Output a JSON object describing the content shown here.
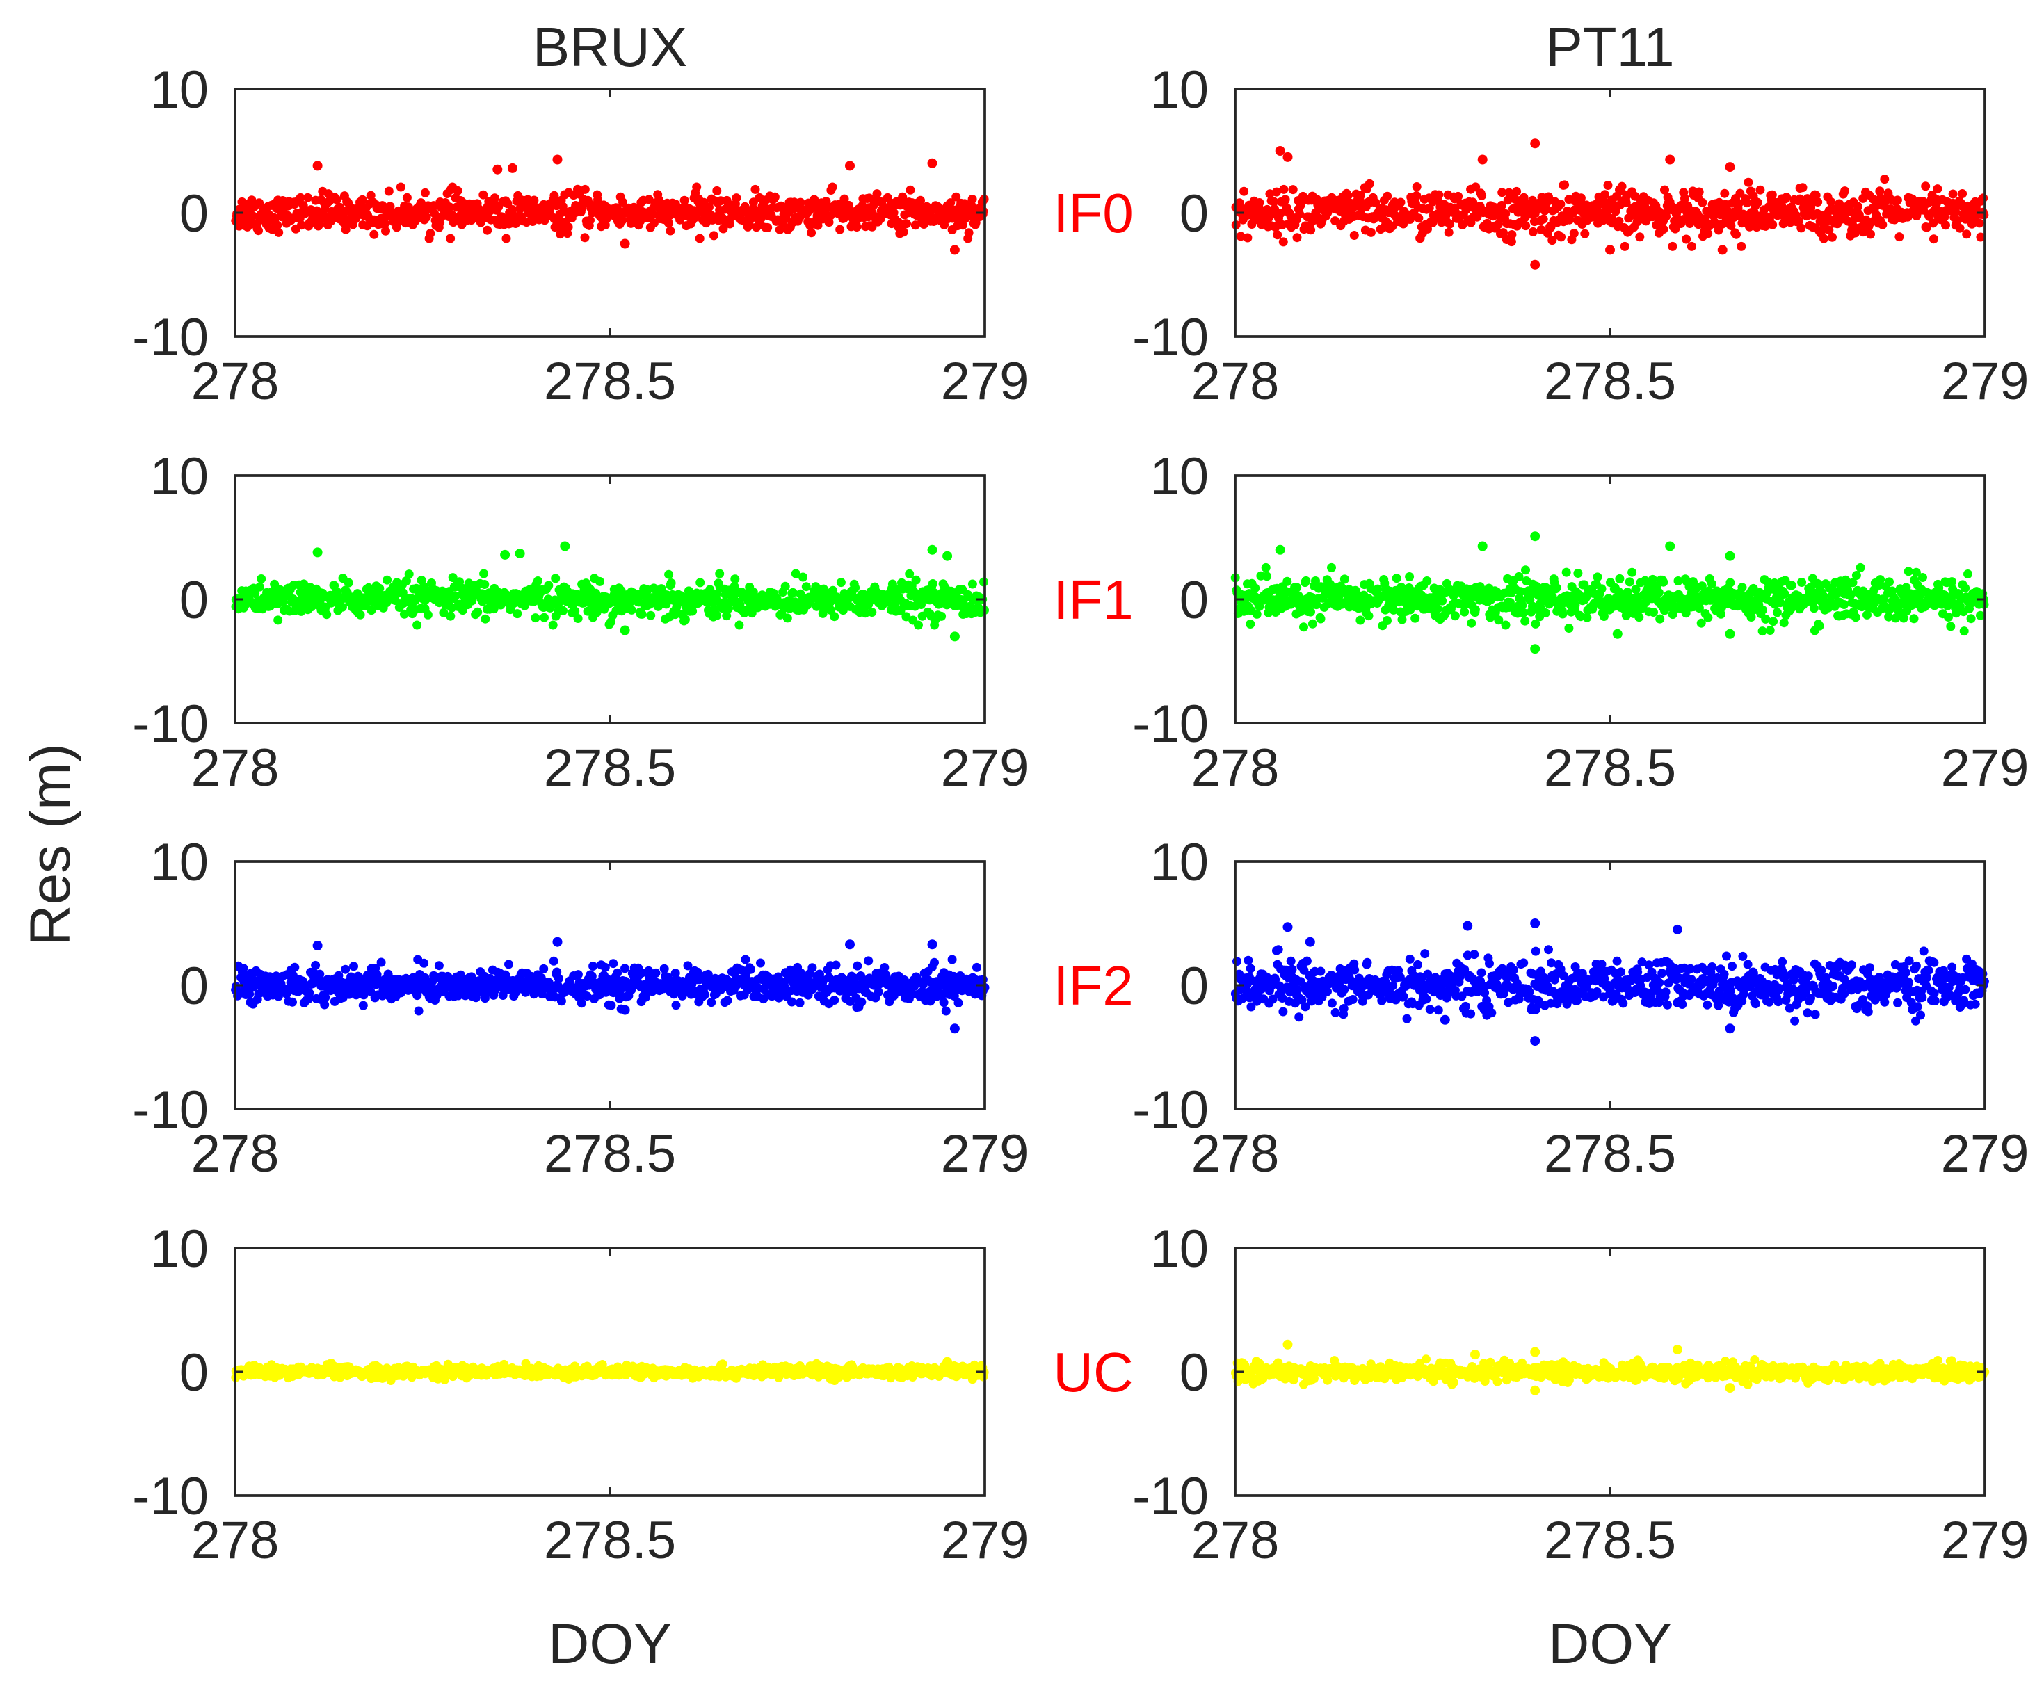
{
  "figure": {
    "ylabel": "Res (m)",
    "row_label_color": "#ff0000",
    "columns": [
      {
        "title": "BRUX",
        "xlabel": "DOY"
      },
      {
        "title": "PT11",
        "xlabel": "DOY"
      }
    ],
    "rows": [
      {
        "label": "IF0",
        "color": "#ff0000"
      },
      {
        "label": "IF1",
        "color": "#00ff00"
      },
      {
        "label": "IF2",
        "color": "#0000ff"
      },
      {
        "label": "UC",
        "color": "#ffff00"
      }
    ]
  },
  "chart_data": [
    {
      "type": "scatter",
      "column_title": "BRUX",
      "row_label": "IF0",
      "color": "#ff0000",
      "xlim": [
        278,
        279
      ],
      "ylim": [
        -10,
        10
      ],
      "xticks": [
        "278",
        "278.5",
        "279"
      ],
      "yticks": [
        "10",
        "0",
        "-10"
      ],
      "xlabel": "",
      "ylabel": "",
      "noise_std": 0.65,
      "outliers": [
        [
          278.11,
          3.8
        ],
        [
          278.35,
          3.5
        ],
        [
          278.37,
          3.6
        ],
        [
          278.43,
          4.3
        ],
        [
          278.82,
          3.8
        ],
        [
          278.93,
          4.0
        ],
        [
          278.96,
          -3.0
        ],
        [
          278.52,
          -2.5
        ]
      ]
    },
    {
      "type": "scatter",
      "column_title": "PT11",
      "row_label": "IF0",
      "color": "#ff0000",
      "xlim": [
        278,
        279
      ],
      "ylim": [
        -10,
        10
      ],
      "xticks": [
        "278",
        "278.5",
        "279"
      ],
      "yticks": [
        "10",
        "0",
        "-10"
      ],
      "xlabel": "",
      "ylabel": "",
      "noise_std": 0.85,
      "outliers": [
        [
          278.06,
          5.0
        ],
        [
          278.07,
          4.5
        ],
        [
          278.33,
          4.3
        ],
        [
          278.4,
          5.6
        ],
        [
          278.4,
          -4.2
        ],
        [
          278.58,
          4.3
        ],
        [
          278.66,
          3.7
        ],
        [
          278.65,
          -3.0
        ],
        [
          278.5,
          -3.0
        ]
      ]
    },
    {
      "type": "scatter",
      "column_title": "BRUX",
      "row_label": "IF1",
      "color": "#00ff00",
      "xlim": [
        278,
        279
      ],
      "ylim": [
        -10,
        10
      ],
      "xticks": [
        "278",
        "278.5",
        "279"
      ],
      "yticks": [
        "10",
        "0",
        "-10"
      ],
      "xlabel": "",
      "ylabel": "",
      "noise_std": 0.65,
      "outliers": [
        [
          278.11,
          3.8
        ],
        [
          278.36,
          3.6
        ],
        [
          278.38,
          3.7
        ],
        [
          278.44,
          4.3
        ],
        [
          278.93,
          4.0
        ],
        [
          278.95,
          3.5
        ],
        [
          278.96,
          -3.0
        ],
        [
          278.52,
          -2.5
        ]
      ]
    },
    {
      "type": "scatter",
      "column_title": "PT11",
      "row_label": "IF1",
      "color": "#00ff00",
      "xlim": [
        278,
        279
      ],
      "ylim": [
        -10,
        10
      ],
      "xticks": [
        "278",
        "278.5",
        "279"
      ],
      "yticks": [
        "10",
        "0",
        "-10"
      ],
      "xlabel": "",
      "ylabel": "",
      "noise_std": 0.8,
      "outliers": [
        [
          278.06,
          4.0
        ],
        [
          278.33,
          4.3
        ],
        [
          278.4,
          5.1
        ],
        [
          278.4,
          -4.0
        ],
        [
          278.58,
          4.3
        ],
        [
          278.66,
          3.5
        ],
        [
          278.66,
          -2.8
        ],
        [
          278.51,
          -2.8
        ]
      ]
    },
    {
      "type": "scatter",
      "column_title": "BRUX",
      "row_label": "IF2",
      "color": "#0000ff",
      "xlim": [
        278,
        279
      ],
      "ylim": [
        -10,
        10
      ],
      "xticks": [
        "278",
        "278.5",
        "279"
      ],
      "yticks": [
        "10",
        "0",
        "-10"
      ],
      "xlabel": "",
      "ylabel": "",
      "noise_std": 0.65,
      "outliers": [
        [
          278.11,
          3.2
        ],
        [
          278.43,
          3.5
        ],
        [
          278.82,
          3.3
        ],
        [
          278.93,
          3.3
        ],
        [
          278.96,
          -3.5
        ],
        [
          278.52,
          -2.0
        ]
      ]
    },
    {
      "type": "scatter",
      "column_title": "PT11",
      "row_label": "IF2",
      "color": "#0000ff",
      "xlim": [
        278,
        279
      ],
      "ylim": [
        -10,
        10
      ],
      "xticks": [
        "278",
        "278.5",
        "279"
      ],
      "yticks": [
        "10",
        "0",
        "-10"
      ],
      "xlabel": "",
      "ylabel": "",
      "noise_std": 0.9,
      "outliers": [
        [
          278.07,
          4.7
        ],
        [
          278.1,
          3.5
        ],
        [
          278.31,
          4.8
        ],
        [
          278.4,
          5.0
        ],
        [
          278.4,
          -4.5
        ],
        [
          278.59,
          4.5
        ],
        [
          278.66,
          -3.5
        ],
        [
          278.28,
          -2.8
        ]
      ]
    },
    {
      "type": "scatter",
      "column_title": "BRUX",
      "row_label": "UC",
      "color": "#ffff00",
      "xlim": [
        278,
        279
      ],
      "ylim": [
        -10,
        10
      ],
      "xticks": [
        "278",
        "278.5",
        "279"
      ],
      "yticks": [
        "10",
        "0",
        "-10"
      ],
      "xlabel": "DOY",
      "ylabel": "",
      "noise_std": 0.22,
      "outliers": [
        [
          278.95,
          0.8
        ]
      ]
    },
    {
      "type": "scatter",
      "column_title": "PT11",
      "row_label": "UC",
      "color": "#ffff00",
      "xlim": [
        278,
        279
      ],
      "ylim": [
        -10,
        10
      ],
      "xticks": [
        "278",
        "278.5",
        "279"
      ],
      "yticks": [
        "10",
        "0",
        "-10"
      ],
      "xlabel": "DOY",
      "ylabel": "",
      "noise_std": 0.32,
      "outliers": [
        [
          278.07,
          2.2
        ],
        [
          278.32,
          1.4
        ],
        [
          278.4,
          1.6
        ],
        [
          278.4,
          -1.5
        ],
        [
          278.59,
          1.8
        ],
        [
          278.66,
          -1.3
        ]
      ]
    }
  ]
}
